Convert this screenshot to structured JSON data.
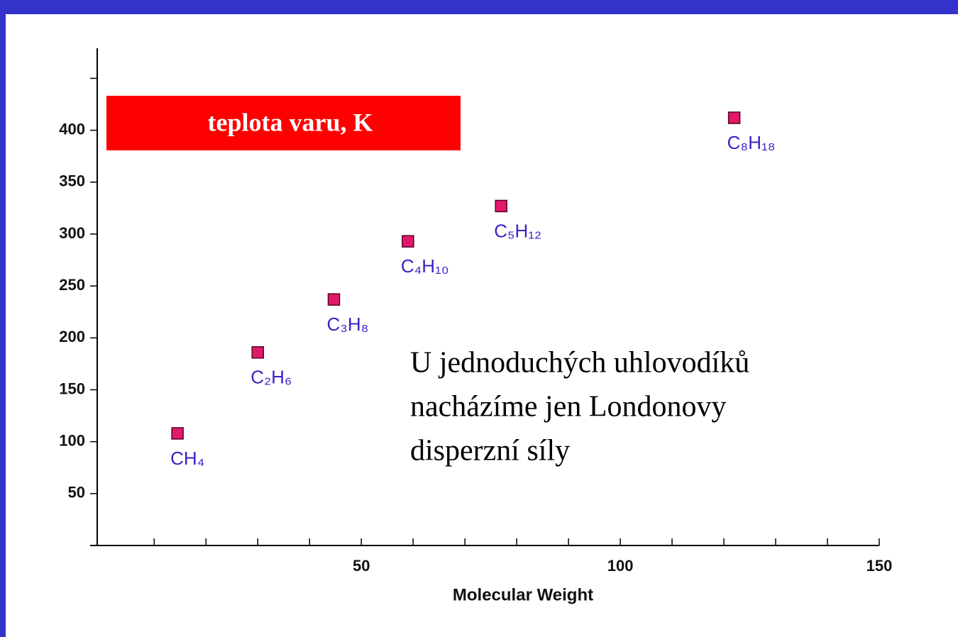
{
  "chart_data": {
    "type": "scatter",
    "title": "teplota varu, K",
    "xlabel": "Molecular Weight",
    "annotation": [
      "U jednoduchých uhlovodíků",
      "nacházíme jen Londonovy",
      "disperzní síly"
    ],
    "categories": [
      "CH₄",
      "C₂H₆",
      "C₃H₈",
      "C₄H₁₀",
      "C₅H₁₂",
      "C₈H₁₈"
    ],
    "x": [
      14.5,
      30,
      44.7,
      59,
      77,
      122
    ],
    "values": [
      108,
      186,
      237,
      293,
      327,
      412
    ],
    "color": "#e0196b",
    "label_color": "#3b22c8",
    "xlim": [
      -1,
      150
    ],
    "xticks": [
      50,
      100,
      150
    ],
    "xminorticks": [
      10,
      20,
      30,
      40,
      60,
      70,
      80,
      90,
      110,
      120,
      130,
      140
    ],
    "ylim": [
      0,
      479
    ],
    "yticks": [
      50,
      100,
      150,
      200,
      250,
      300,
      350,
      400
    ],
    "yminorticks": [
      450
    ],
    "grid": false
  }
}
